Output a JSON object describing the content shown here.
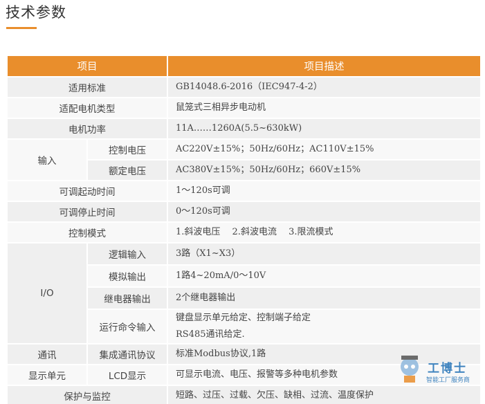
{
  "header": {
    "title": "技术参数"
  },
  "table": {
    "columns": [
      "项目",
      "项目描述"
    ],
    "rows": [
      {
        "label": "适用标准",
        "desc": [
          "GB14048.6-2016（IEC947-4-2）"
        ]
      },
      {
        "label": "适配电机类型",
        "desc": [
          "鼠笼式三相异步电动机"
        ]
      },
      {
        "label": "电机功率",
        "desc": [
          "11A……1260A(5.5~630kW)"
        ]
      },
      {
        "label": "输入",
        "subrows": [
          {
            "label": "控制电压",
            "desc": [
              "AC220V±15%；50Hz/60Hz；AC110V±15%"
            ]
          },
          {
            "label": "额定电压",
            "desc": [
              "AC380V±15%；50Hz/60Hz；660V±15%"
            ]
          }
        ]
      },
      {
        "label": "可调起动时间",
        "desc": [
          "1～120s可调"
        ]
      },
      {
        "label": "可调停止时间",
        "desc": [
          "0～120s可调"
        ]
      },
      {
        "label": "控制模式",
        "desc": [
          "1.斜波电压　 2.斜波电流　 3.限流模式"
        ]
      },
      {
        "label": "I/O",
        "subrows": [
          {
            "label": "逻辑输入",
            "desc": [
              "3路（X1~X3）"
            ]
          },
          {
            "label": "模拟输出",
            "desc": [
              "1路4~20mA/0～10V"
            ]
          },
          {
            "label": "继电器输出",
            "desc": [
              "2个继电器输出"
            ]
          },
          {
            "label": "运行命令输入",
            "desc": [
              "键盘显示单元给定、控制端子给定",
              "RS485通讯给定."
            ]
          }
        ]
      },
      {
        "label": "通讯",
        "subrows": [
          {
            "label": "集成通讯协议",
            "desc": [
              "标准Modbus协议,1路"
            ]
          }
        ]
      },
      {
        "label": "显示单元",
        "subrows": [
          {
            "label": "LCD显示",
            "desc": [
              "可显示电流、电压、报警等多种电机参数"
            ]
          }
        ]
      },
      {
        "label": "保护与监控",
        "desc": [
          "短路、过压、过载、欠压、缺相、过流、温度保护"
        ]
      }
    ]
  },
  "watermark": {
    "brand": "工博士",
    "slogan": "智能工厂服务商"
  }
}
